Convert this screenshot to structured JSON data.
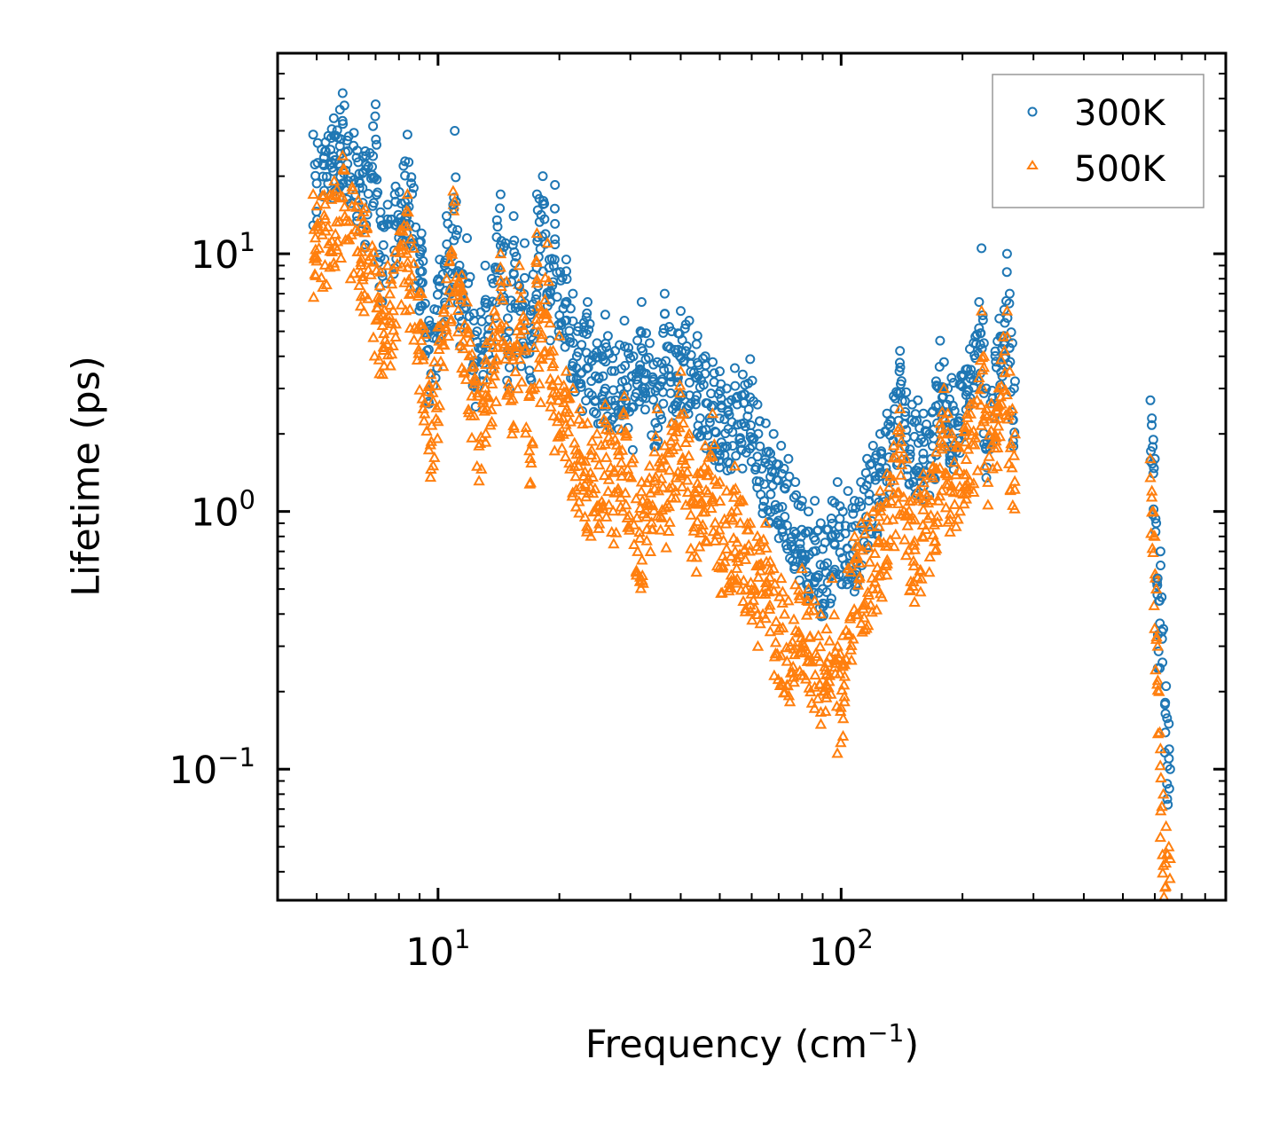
{
  "chart_data": {
    "type": "scatter",
    "title": "",
    "xlabel_main": "Frequency (cm",
    "xlabel_sup": "−1",
    "xlabel_close": ")",
    "ylabel": "Lifetime (ps)",
    "xscale": "log",
    "yscale": "log",
    "xlim": [
      4,
      900
    ],
    "ylim": [
      0.031,
      60
    ],
    "legend_position": "top-right",
    "x_ticks": [
      {
        "value": 10,
        "base": "10",
        "exp": "1"
      },
      {
        "value": 100,
        "base": "10",
        "exp": "2"
      }
    ],
    "y_ticks": [
      {
        "value": 0.1,
        "base": "10",
        "exp": "−1"
      },
      {
        "value": 1,
        "base": "10",
        "exp": "0"
      },
      {
        "value": 10,
        "base": "10",
        "exp": "1"
      }
    ],
    "series": [
      {
        "name": "300K",
        "marker": "circle",
        "color": "#1f77b4",
        "x": [
          4.9,
          5.8,
          6.6,
          7.0,
          7.2,
          7.5,
          8.4,
          8.7,
          9.1,
          9.5,
          10.1,
          10.5,
          10.9,
          11.0,
          11.3,
          11.8,
          12.5,
          13.1,
          13.6,
          14.0,
          14.3,
          14.7,
          15.0,
          15.4,
          15.9,
          16.4,
          17.0,
          17.6,
          18.2,
          18.9,
          19.5,
          20.1,
          20.8,
          21.6,
          22.3,
          23.5,
          24.8,
          26.0,
          27.5,
          29.0,
          30.5,
          32.0,
          33.5,
          35.0,
          36.5,
          38.0,
          40.0,
          42.0,
          44.0,
          46.0,
          48.0,
          50.0,
          52.0,
          54.5,
          57.0,
          59.5,
          62.0,
          65.0,
          68.0,
          71.0,
          74.0,
          77.0,
          80.0,
          83.0,
          86.0,
          89.0,
          92.0,
          95.0,
          98.0,
          101.0,
          104.0,
          108.0,
          112.0,
          116.0,
          120.0,
          125.0,
          130.0,
          135.0,
          140.0,
          145.0,
          150.0,
          155.0,
          160.0,
          172.0,
          176.0,
          180.0,
          184.0,
          188.0,
          220.0,
          223.0,
          226.0,
          229.0,
          258.0,
          262.0,
          266.0,
          270.0,
          585.0,
          590.0,
          595.0,
          600.0,
          605.0,
          610.0,
          615.0,
          620.0,
          630.0,
          640.0,
          650.0,
          655.0
        ],
        "y": [
          29.0,
          42.0,
          25.0,
          38.0,
          14.5,
          15.5,
          29.0,
          18.0,
          12.0,
          5.5,
          9.5,
          14.0,
          15.5,
          30.0,
          9.0,
          11.5,
          5.0,
          9.0,
          8.0,
          13.5,
          17.0,
          11.0,
          5.0,
          14.0,
          7.5,
          11.0,
          6.0,
          17.0,
          20.0,
          9.5,
          18.5,
          8.5,
          9.5,
          7.0,
          5.2,
          6.5,
          4.5,
          5.8,
          4.2,
          5.5,
          4.0,
          6.5,
          4.5,
          3.8,
          7.0,
          5.0,
          6.0,
          5.5,
          4.8,
          4.0,
          3.8,
          3.5,
          3.0,
          3.6,
          3.4,
          3.9,
          2.6,
          2.2,
          2.0,
          1.8,
          1.6,
          1.3,
          1.1,
          1.0,
          1.1,
          0.9,
          0.85,
          1.1,
          1.3,
          1.0,
          1.2,
          1.1,
          1.3,
          1.6,
          1.8,
          2.0,
          2.4,
          2.8,
          4.2,
          2.9,
          2.6,
          2.7,
          2.4,
          3.2,
          4.6,
          3.8,
          3.0,
          3.3,
          6.5,
          10.5,
          4.5,
          3.0,
          10.0,
          7.0,
          4.5,
          3.2,
          2.7,
          2.3,
          1.9,
          1.6,
          0.9,
          0.55,
          0.45,
          0.7,
          0.35,
          0.21,
          0.15,
          0.1
        ]
      },
      {
        "name": "500K",
        "marker": "triangle",
        "color": "#ff7f0e",
        "x": [
          4.9,
          5.8,
          6.6,
          7.2,
          7.5,
          8.4,
          8.7,
          9.1,
          9.6,
          10.0,
          10.5,
          10.9,
          11.0,
          11.8,
          12.5,
          13.2,
          13.8,
          14.3,
          14.8,
          15.3,
          15.9,
          16.4,
          17.0,
          17.6,
          18.1,
          18.7,
          19.3,
          20.0,
          20.8,
          21.6,
          22.5,
          23.5,
          24.8,
          26.0,
          27.5,
          29.0,
          30.5,
          32.0,
          33.5,
          35.0,
          36.5,
          38.0,
          40.0,
          42.0,
          44.0,
          46.0,
          48.0,
          50.0,
          52.0,
          54.5,
          57.0,
          59.5,
          62.0,
          65.0,
          68.0,
          71.0,
          74.0,
          77.0,
          80.0,
          83.0,
          86.0,
          89.0,
          92.0,
          95.0,
          98.0,
          101.0,
          104.0,
          108.0,
          112.0,
          116.0,
          120.0,
          125.0,
          130.0,
          135.0,
          140.0,
          145.0,
          150.0,
          155.0,
          160.0,
          172.0,
          176.0,
          180.0,
          184.0,
          188.0,
          220.0,
          223.0,
          226.0,
          229.0,
          258.0,
          262.0,
          266.0,
          270.0,
          585.0,
          590.0,
          595.0,
          600.0,
          605.0,
          610.0,
          615.0,
          620.0,
          630.0,
          640.0,
          650.0,
          655.0
        ],
        "y": [
          17.0,
          24.0,
          15.0,
          8.5,
          9.0,
          17.0,
          10.5,
          7.0,
          3.4,
          5.2,
          8.0,
          17.5,
          16.0,
          6.5,
          3.2,
          4.5,
          6.0,
          10.0,
          7.8,
          4.0,
          9.0,
          5.5,
          3.0,
          12.0,
          6.0,
          11.0,
          4.2,
          4.8,
          3.5,
          3.0,
          2.5,
          2.2,
          2.0,
          2.6,
          1.9,
          2.8,
          1.6,
          1.3,
          1.5,
          2.5,
          1.8,
          2.2,
          3.5,
          2.0,
          1.4,
          1.8,
          2.4,
          1.3,
          1.2,
          1.5,
          1.1,
          0.9,
          0.8,
          0.9,
          0.6,
          0.55,
          0.45,
          0.52,
          0.6,
          0.5,
          0.45,
          0.4,
          0.35,
          0.55,
          0.3,
          0.33,
          0.6,
          0.8,
          0.9,
          0.95,
          1.0,
          1.2,
          1.4,
          1.8,
          2.5,
          1.6,
          1.1,
          1.2,
          1.4,
          1.7,
          2.2,
          3.0,
          2.4,
          2.0,
          3.3,
          6.0,
          4.0,
          2.5,
          6.0,
          3.5,
          2.5,
          2.0,
          1.6,
          1.2,
          1.0,
          0.8,
          0.5,
          0.3,
          0.2,
          0.12,
          0.08,
          0.06,
          0.05,
          0.045
        ]
      }
    ]
  }
}
